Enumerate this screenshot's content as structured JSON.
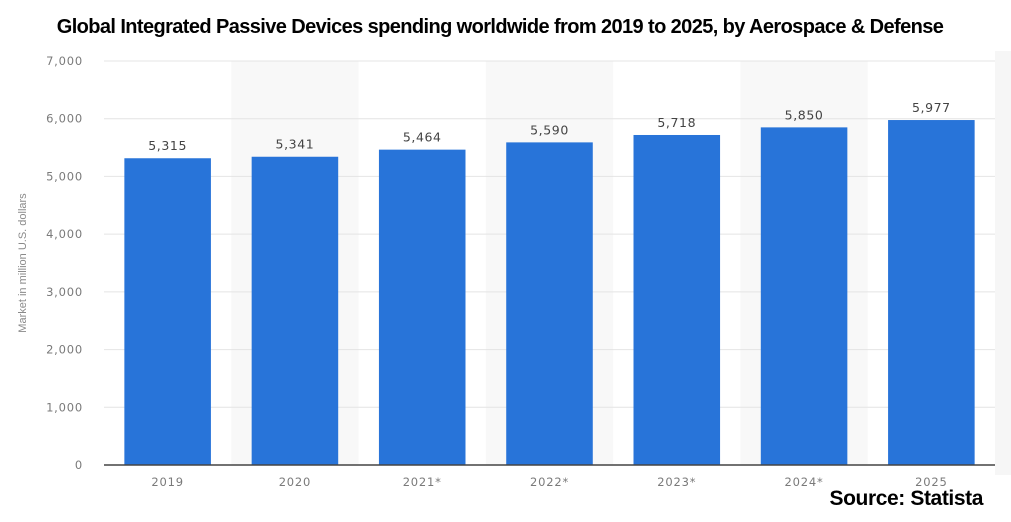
{
  "chart_data": {
    "type": "bar",
    "title": "Global Integrated Passive Devices spending worldwide from 2019 to 2025, by Aerospace & Defense",
    "xlabel": "",
    "ylabel": "Market in million U.S. dollars",
    "categories": [
      "2019",
      "2020",
      "2021*",
      "2022*",
      "2023*",
      "2024*",
      "2025"
    ],
    "values": [
      5315,
      5341,
      5464,
      5590,
      5718,
      5850,
      5977
    ],
    "data_labels": [
      "5,315",
      "5,341",
      "5,464",
      "5,590",
      "5,718",
      "5,850",
      "5,977"
    ],
    "ylim": [
      0,
      7000
    ],
    "yticks": [
      0,
      1000,
      2000,
      3000,
      4000,
      5000,
      6000,
      7000
    ],
    "ytick_labels": [
      "0",
      "1,000",
      "2,000",
      "3,000",
      "4,000",
      "5,000",
      "6,000",
      "7,000"
    ],
    "grid": true,
    "legend": "none",
    "bar_color": "#2874d9",
    "source": "Source: Statista"
  }
}
